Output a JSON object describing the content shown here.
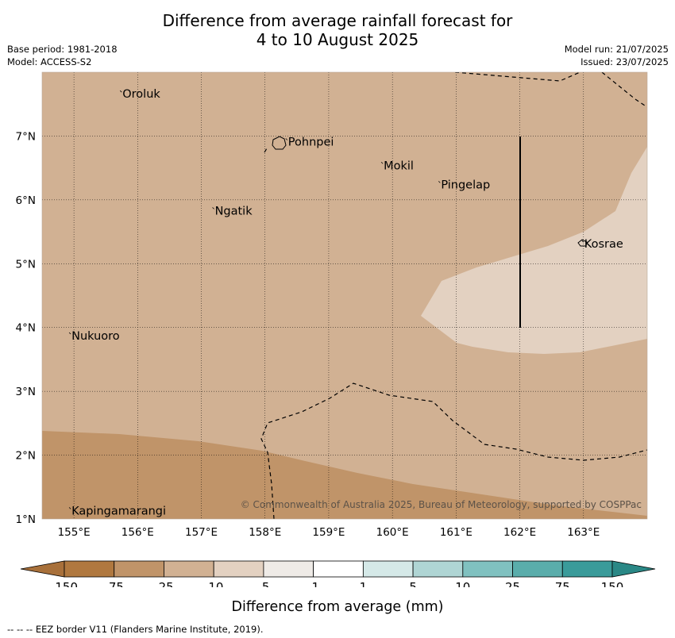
{
  "title": {
    "line1": "Difference from average rainfall forecast for",
    "line2": "4 to 10 August 2025"
  },
  "meta_left": {
    "base_period": "Base period: 1981-2018",
    "model": "Model: ACCESS-S2"
  },
  "meta_right": {
    "model_run": "Model run: 21/07/2025",
    "issued": "Issued: 23/07/2025"
  },
  "map": {
    "lon_range": [
      154.5,
      164.0
    ],
    "lat_range": [
      1.0,
      8.0
    ],
    "lon_ticks": [
      "155°E",
      "156°E",
      "157°E",
      "158°E",
      "159°E",
      "160°E",
      "161°E",
      "162°E",
      "163°E"
    ],
    "lat_ticks": [
      "7°N",
      "6°N",
      "5°N",
      "4°N",
      "3°N",
      "2°N",
      "1°N"
    ],
    "places": [
      {
        "name": "Oroluk",
        "lon": 155.75,
        "lat": 7.6
      },
      {
        "name": "Pohnpei",
        "lon": 158.35,
        "lat": 6.85
      },
      {
        "name": "Mokil",
        "lon": 159.85,
        "lat": 6.48
      },
      {
        "name": "Pingelap",
        "lon": 160.75,
        "lat": 6.18
      },
      {
        "name": "Ngatik",
        "lon": 157.2,
        "lat": 5.77
      },
      {
        "name": "Kosrae",
        "lon": 163.0,
        "lat": 5.25
      },
      {
        "name": "Nukuoro",
        "lon": 154.95,
        "lat": 3.81
      },
      {
        "name": "Kapingamarangi",
        "lon": 154.95,
        "lat": 1.07
      }
    ],
    "fill_colors": {
      "minus_75_to_25": "#c09469",
      "minus_25_to_10": "#d1b193",
      "minus_10_to_5": "#e3d1c1"
    },
    "copyright": "© Commonwealth of Australia 2025, Bureau of Meteorology, supported by COSPPac"
  },
  "colorbar": {
    "labels": [
      "-150",
      "-75",
      "-25",
      "-10",
      "-5",
      "-1",
      "1",
      "5",
      "10",
      "25",
      "75",
      "150"
    ],
    "colors": [
      "#a8703a",
      "#b0783f",
      "#c09469",
      "#d1b193",
      "#e3d1c1",
      "#efebe7",
      "#ffffff",
      "#d5e9e8",
      "#afd5d4",
      "#80c1c0",
      "#5aadab",
      "#3a9b9a",
      "#2a8886"
    ],
    "label": "Difference from average (mm)"
  },
  "eez_note": "-- -- -- EEZ border V11 (Flanders Marine Institute, 2019)."
}
